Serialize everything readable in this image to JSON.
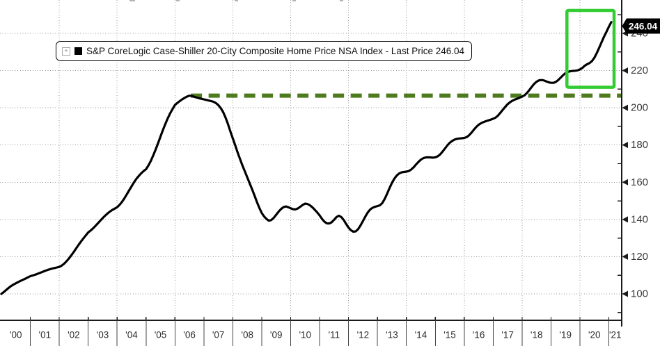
{
  "accent_colors": {
    "series_line": "#000000",
    "peak_dash_line": "#4e7b1d",
    "highlight_box": "#33cc33",
    "grid": "#999999",
    "axis": "#1a1a1a",
    "tick_label": "#3a3a3a",
    "flag_bg": "#000000",
    "flag_fg": "#ffffff"
  },
  "legend": {
    "expand_icon_glyph": "+",
    "swatch_color": "#000000",
    "label": "S&P CoreLogic Case-Shiller 20-City Composite Home Price NSA Index - Last Price 246.04"
  },
  "price_flag": {
    "value": "246.04"
  },
  "y_axis": {
    "side": "right",
    "major_ticks": [
      240,
      220,
      200,
      180,
      160,
      140,
      120,
      100
    ],
    "minor_ticks": [
      250,
      230,
      210,
      190,
      170,
      150,
      130,
      110,
      90
    ]
  },
  "x_axis": {
    "labels": [
      "'00",
      "'01",
      "'02",
      "'03",
      "'04",
      "'05",
      "'06",
      "'07",
      "'08",
      "'09",
      "'10",
      "'11",
      "'12",
      "'13",
      "'14",
      "'15",
      "'16",
      "'17",
      "'18",
      "'19",
      "'20",
      "'21"
    ],
    "grid_years": [
      2002,
      2004,
      2006,
      2008,
      2010,
      2012,
      2014,
      2016,
      2018,
      2020
    ]
  },
  "chart_data": {
    "type": "line",
    "title": "S&P CoreLogic Case-Shiller 20-City Composite Home Price NSA Index",
    "last_price": 246.04,
    "xlim": [
      2000,
      2021.35
    ],
    "ylim": [
      93,
      258
    ],
    "grid": true,
    "legend_position": "top-left",
    "series": [
      {
        "name": "S&P CoreLogic Case-Shiller 20-City Composite Home Price NSA Index",
        "color": "#000000",
        "frequency": "monthly",
        "start_year": 2000,
        "start_month": 1,
        "values": [
          100.0,
          101.0,
          102.1,
          103.2,
          104.2,
          105.0,
          105.7,
          106.4,
          107.0,
          107.6,
          108.2,
          108.9,
          109.5,
          109.9,
          110.3,
          110.8,
          111.3,
          111.8,
          112.3,
          112.8,
          113.2,
          113.6,
          113.9,
          114.2,
          114.5,
          115.2,
          116.2,
          117.5,
          119.0,
          120.7,
          122.5,
          124.4,
          126.3,
          128.1,
          129.8,
          131.4,
          133.0,
          134.0,
          135.2,
          136.5,
          137.9,
          139.3,
          140.7,
          142.0,
          143.2,
          144.2,
          145.1,
          145.8,
          146.5,
          147.8,
          149.4,
          151.3,
          153.4,
          155.6,
          157.8,
          159.9,
          161.8,
          163.4,
          164.8,
          166.0,
          167.0,
          169.0,
          171.5,
          174.4,
          177.6,
          181.0,
          184.5,
          188.0,
          191.3,
          194.3,
          197.0,
          199.3,
          201.5,
          202.6,
          203.6,
          204.5,
          205.3,
          206.0,
          206.5,
          206.3,
          205.9,
          205.5,
          205.1,
          204.8,
          204.5,
          204.2,
          203.9,
          203.6,
          203.2,
          202.5,
          201.4,
          199.8,
          197.6,
          194.7,
          191.2,
          187.3,
          183.5,
          179.8,
          176.0,
          172.4,
          169.0,
          165.8,
          162.6,
          159.4,
          156.2,
          152.8,
          149.4,
          146.2,
          143.5,
          141.6,
          140.2,
          139.3,
          139.7,
          140.9,
          142.5,
          144.2,
          145.6,
          146.6,
          147.0,
          146.6,
          146.0,
          145.5,
          145.4,
          145.9,
          146.8,
          147.8,
          148.5,
          148.3,
          147.6,
          146.5,
          145.2,
          143.8,
          142.2,
          140.3,
          138.8,
          137.9,
          137.8,
          138.5,
          139.8,
          141.3,
          142.0,
          141.3,
          139.7,
          137.6,
          135.6,
          134.2,
          133.4,
          133.6,
          134.8,
          136.8,
          139.2,
          141.6,
          143.8,
          145.4,
          146.3,
          146.8,
          147.2,
          147.6,
          148.8,
          151.0,
          153.8,
          156.8,
          159.6,
          161.9,
          163.6,
          164.7,
          165.3,
          165.5,
          165.7,
          166.0,
          166.8,
          168.0,
          169.5,
          170.9,
          172.1,
          172.9,
          173.3,
          173.4,
          173.3,
          173.2,
          173.4,
          173.9,
          174.9,
          176.4,
          178.1,
          179.8,
          181.2,
          182.2,
          182.9,
          183.3,
          183.5,
          183.6,
          183.8,
          184.2,
          185.2,
          186.6,
          188.2,
          189.7,
          190.9,
          191.7,
          192.3,
          192.8,
          193.2,
          193.6,
          194.1,
          194.7,
          195.8,
          197.3,
          198.9,
          200.5,
          201.9,
          203.0,
          203.8,
          204.4,
          204.9,
          205.4,
          206.0,
          206.7,
          207.9,
          209.5,
          211.2,
          212.8,
          214.0,
          214.7,
          214.9,
          214.7,
          214.2,
          213.7,
          213.4,
          213.4,
          213.9,
          214.9,
          216.2,
          217.5,
          218.6,
          219.3,
          219.6,
          219.8,
          219.9,
          220.1,
          220.6,
          221.4,
          222.6,
          223.4,
          224.0,
          225.1,
          226.9,
          229.4,
          232.3,
          235.3,
          238.2,
          240.8,
          243.5,
          246.04
        ]
      }
    ],
    "peak_reference_line": {
      "value": 206.5,
      "from_year": 2006.55,
      "style": "dashed",
      "color": "#4e7b1d",
      "meaning": "2006 housing-bubble peak level"
    },
    "highlight_box": {
      "t_start": 2019.55,
      "t_end": 2021.18,
      "v_min": 211,
      "v_max": 252.3,
      "color": "#33cc33",
      "meaning": "2020-2021 price surge highlight"
    }
  }
}
